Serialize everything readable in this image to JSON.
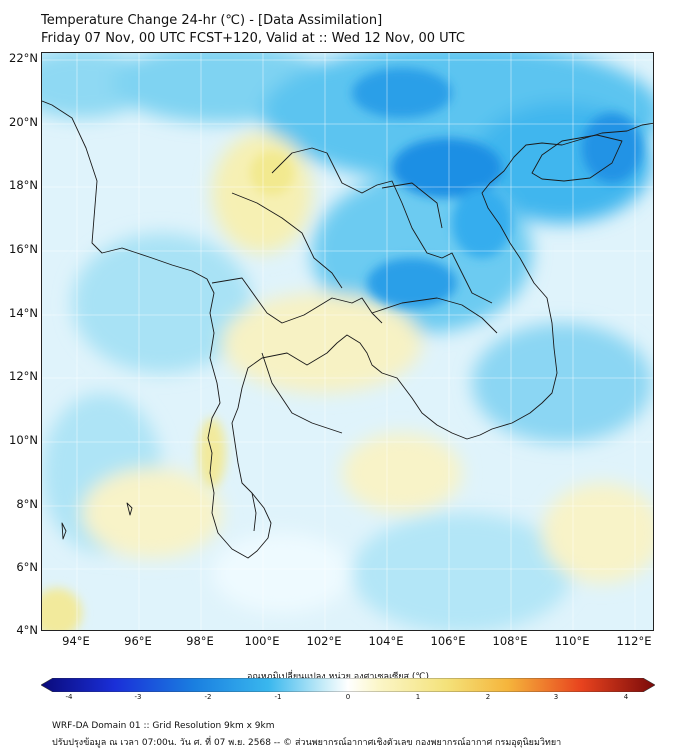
{
  "header": {
    "title": "Temperature Change 24-hr (℃) - [Data Assimilation]",
    "subtitle": "Friday 07 Nov, 00 UTC FCST+120, Valid at :: Wed 12 Nov, 00 UTC"
  },
  "map": {
    "lat_labels": [
      "22°N",
      "20°N",
      "18°N",
      "16°N",
      "14°N",
      "12°N",
      "10°N",
      "8°N",
      "6°N",
      "4°N"
    ],
    "lon_labels": [
      "94°E",
      "96°E",
      "98°E",
      "100°E",
      "102°E",
      "104°E",
      "106°E",
      "108°E",
      "110°E",
      "112°E"
    ],
    "colors": {
      "base": "#dff3fb",
      "light_blue": "#9fdff4",
      "blue": "#39b7ee",
      "deep_blue": "#1a7fe0",
      "yellow": "#f6f0b3",
      "pale_yellow": "#fbf8d8",
      "border": "#222222"
    }
  },
  "colorbar": {
    "title": "อุณหภูมิเปลี่ยนแปลง หน่วย องศาเซลเซียส (℃)",
    "ticks": [
      "-4",
      "-3",
      "-2",
      "-1",
      "0",
      "1",
      "2",
      "3",
      "4"
    ],
    "min": -4,
    "max": 4
  },
  "footer": {
    "line1": "WRF-DA Domain 01 :: Grid Resolution 9km x 9km",
    "line2": "ปรับปรุงข้อมูล ณ เวลา 07:00น. วัน ศ. ที่ 07 พ.ย. 2568 -- © ส่วนพยากรณ์อากาศเชิงตัวเลข กองพยากรณ์อากาศ กรมอุตุนิยมวิทยา"
  }
}
